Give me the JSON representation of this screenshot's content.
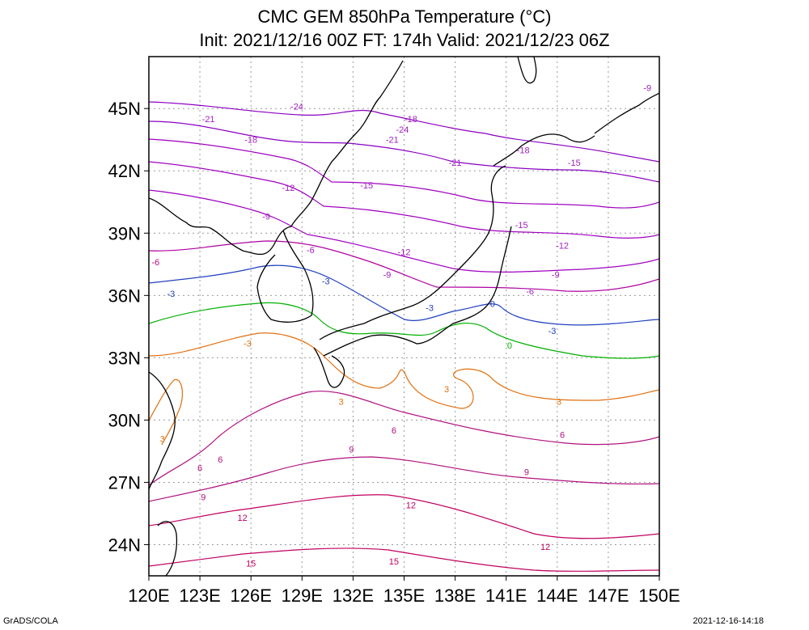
{
  "title_line1": "CMC GEM 850hPa Temperature (°C)",
  "title_line2": "Init: 2021/12/16 00Z  FT: 174h  Valid: 2021/12/23 06Z",
  "footer_left": "GrADS/COLA",
  "footer_right": "2021-12-16-14:18",
  "map": {
    "lon_range": [
      120,
      150
    ],
    "lat_range": [
      22.5,
      47.5
    ],
    "lon_ticks": [
      "120E",
      "123E",
      "126E",
      "129E",
      "132E",
      "135E",
      "138E",
      "141E",
      "144E",
      "147E",
      "150E"
    ],
    "lat_ticks": [
      "24N",
      "27N",
      "30N",
      "33N",
      "36N",
      "39N",
      "42N",
      "45N"
    ],
    "grid": true
  },
  "contour_labels": [
    {
      "text": "-24",
      "lon": 128.7,
      "lat": 45.1,
      "color": "#a020c0"
    },
    {
      "text": "-21",
      "lon": 123.5,
      "lat": 44.5,
      "color": "#a020c0"
    },
    {
      "text": "-18",
      "lon": 126.0,
      "lat": 43.5,
      "color": "#a020c0"
    },
    {
      "text": "-24",
      "lon": 134.9,
      "lat": 44.0,
      "color": "#a020c0"
    },
    {
      "text": "-18",
      "lon": 135.4,
      "lat": 44.5,
      "color": "#a020c0"
    },
    {
      "text": "-21",
      "lon": 134.3,
      "lat": 43.5,
      "color": "#a020c0"
    },
    {
      "text": "-21",
      "lon": 138.0,
      "lat": 42.4,
      "color": "#a020c0"
    },
    {
      "text": "-18",
      "lon": 142.0,
      "lat": 43.0,
      "color": "#a020c0"
    },
    {
      "text": "-15",
      "lon": 145.0,
      "lat": 42.4,
      "color": "#a020c0"
    },
    {
      "text": "-12",
      "lon": 128.2,
      "lat": 41.2,
      "color": "#a020c0"
    },
    {
      "text": "-15",
      "lon": 132.8,
      "lat": 41.3,
      "color": "#a020c0"
    },
    {
      "text": "-9",
      "lon": 126.9,
      "lat": 39.8,
      "color": "#a020c0"
    },
    {
      "text": "-15",
      "lon": 141.9,
      "lat": 39.4,
      "color": "#a020c0"
    },
    {
      "text": "-12",
      "lon": 144.3,
      "lat": 38.4,
      "color": "#a020c0"
    },
    {
      "text": "-6",
      "lon": 129.5,
      "lat": 38.2,
      "color": "#a020c0"
    },
    {
      "text": "-12",
      "lon": 135.0,
      "lat": 38.1,
      "color": "#a020c0"
    },
    {
      "text": "-6",
      "lon": 120.4,
      "lat": 37.6,
      "color": "#b01080"
    },
    {
      "text": "-9",
      "lon": 134.0,
      "lat": 37.0,
      "color": "#a020c0"
    },
    {
      "text": "-9",
      "lon": 143.9,
      "lat": 37.0,
      "color": "#a020c0"
    },
    {
      "text": "-3",
      "lon": 130.4,
      "lat": 36.7,
      "color": "#2040c0"
    },
    {
      "text": "-3",
      "lon": 121.3,
      "lat": 36.1,
      "color": "#2040c0"
    },
    {
      "text": "-6",
      "lon": 142.4,
      "lat": 36.2,
      "color": "#a020c0"
    },
    {
      "text": "-9",
      "lon": 149.3,
      "lat": 46.0,
      "color": "#a020c0"
    },
    {
      "text": "-3",
      "lon": 136.5,
      "lat": 35.4,
      "color": "#2040c0"
    },
    {
      "text": "0",
      "lon": 140.2,
      "lat": 35.6,
      "color": "#2040c0"
    },
    {
      "text": "-3",
      "lon": 143.7,
      "lat": 34.3,
      "color": "#2040c0"
    },
    {
      "text": "0",
      "lon": 141.2,
      "lat": 33.6,
      "color": "#00b000"
    },
    {
      "text": "-3",
      "lon": 125.8,
      "lat": 33.7,
      "color": "#e07010"
    },
    {
      "text": "3",
      "lon": 131.3,
      "lat": 30.9,
      "color": "#e07010"
    },
    {
      "text": "3",
      "lon": 137.5,
      "lat": 31.5,
      "color": "#e07010"
    },
    {
      "text": "3",
      "lon": 144.1,
      "lat": 30.9,
      "color": "#e07010"
    },
    {
      "text": "3",
      "lon": 120.8,
      "lat": 29.1,
      "color": "#e07010"
    },
    {
      "text": "6",
      "lon": 123.0,
      "lat": 27.7,
      "color": "#b01080"
    },
    {
      "text": "6",
      "lon": 124.2,
      "lat": 28.1,
      "color": "#b01080"
    },
    {
      "text": "6",
      "lon": 134.4,
      "lat": 29.5,
      "color": "#b01080"
    },
    {
      "text": "6",
      "lon": 144.3,
      "lat": 29.3,
      "color": "#b01080"
    },
    {
      "text": "9",
      "lon": 131.9,
      "lat": 28.6,
      "color": "#b01080"
    },
    {
      "text": "9",
      "lon": 142.2,
      "lat": 27.5,
      "color": "#b01080"
    },
    {
      "text": "9",
      "lon": 123.2,
      "lat": 26.3,
      "color": "#b01080"
    },
    {
      "text": "12",
      "lon": 135.4,
      "lat": 25.9,
      "color": "#c00060"
    },
    {
      "text": "12",
      "lon": 125.5,
      "lat": 25.3,
      "color": "#c00060"
    },
    {
      "text": "12",
      "lon": 143.3,
      "lat": 23.9,
      "color": "#c00060"
    },
    {
      "text": "15",
      "lon": 126.0,
      "lat": 23.1,
      "color": "#c00060"
    },
    {
      "text": "15",
      "lon": 134.4,
      "lat": 23.2,
      "color": "#c00060"
    }
  ]
}
